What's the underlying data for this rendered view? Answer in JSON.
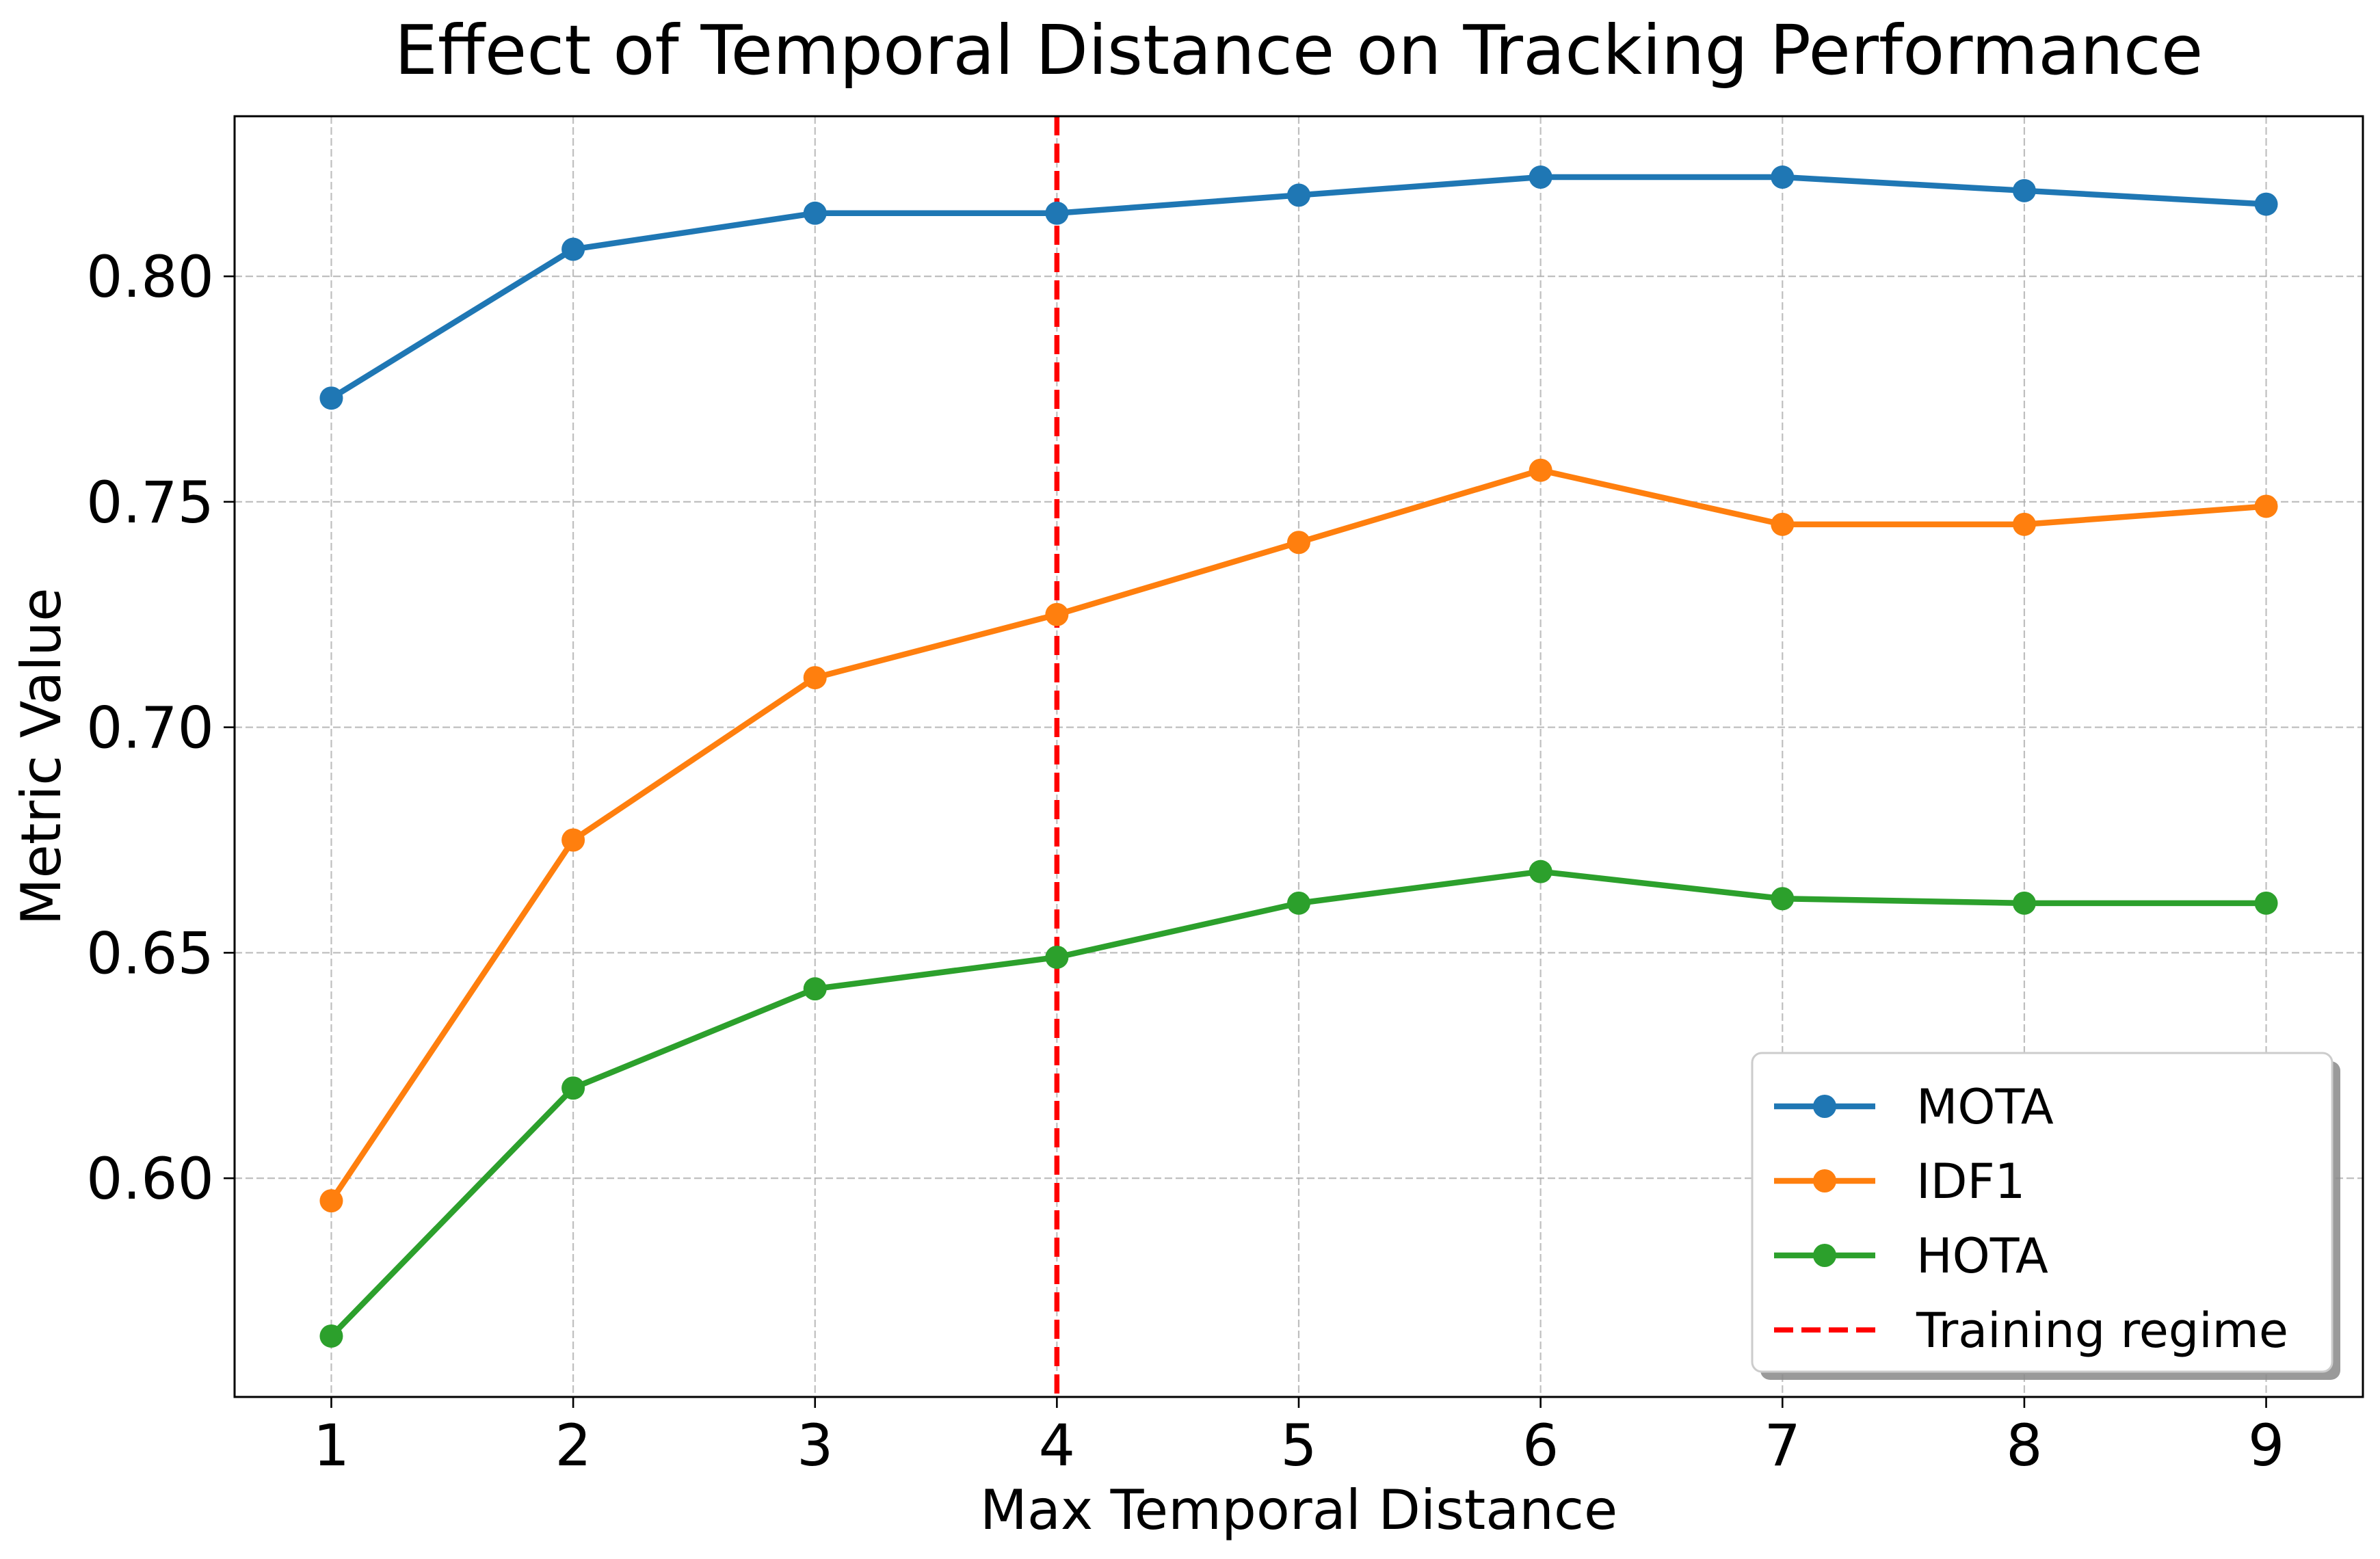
{
  "chart_data": {
    "type": "line",
    "title": "Effect of Temporal Distance on Tracking Performance",
    "xlabel": "Max Temporal Distance",
    "ylabel": "Metric Value",
    "x": [
      1,
      2,
      3,
      4,
      5,
      6,
      7,
      8,
      9
    ],
    "x_tick_labels": [
      "1",
      "2",
      "3",
      "4",
      "5",
      "6",
      "7",
      "8",
      "9"
    ],
    "xlim": [
      0.6,
      9.4
    ],
    "ylim": [
      0.5515,
      0.8355
    ],
    "y_ticks": [
      0.6,
      0.65,
      0.7,
      0.75,
      0.8
    ],
    "y_tick_labels": [
      "0.60",
      "0.65",
      "0.70",
      "0.75",
      "0.80"
    ],
    "grid": true,
    "legend_position": "lower-right",
    "series": [
      {
        "name": "MOTA",
        "color": "#1f77b4",
        "values": [
          0.773,
          0.806,
          0.814,
          0.814,
          0.818,
          0.822,
          0.822,
          0.819,
          0.816
        ]
      },
      {
        "name": "IDF1",
        "color": "#ff7f0e",
        "values": [
          0.595,
          0.675,
          0.711,
          0.725,
          0.741,
          0.757,
          0.745,
          0.745,
          0.749
        ]
      },
      {
        "name": "HOTA",
        "color": "#2ca02c",
        "values": [
          0.565,
          0.62,
          0.642,
          0.649,
          0.661,
          0.668,
          0.662,
          0.661,
          0.661
        ]
      }
    ],
    "reference_line": {
      "name": "Training regime",
      "x": 4,
      "color": "#ff0000",
      "style": "dashed"
    }
  }
}
